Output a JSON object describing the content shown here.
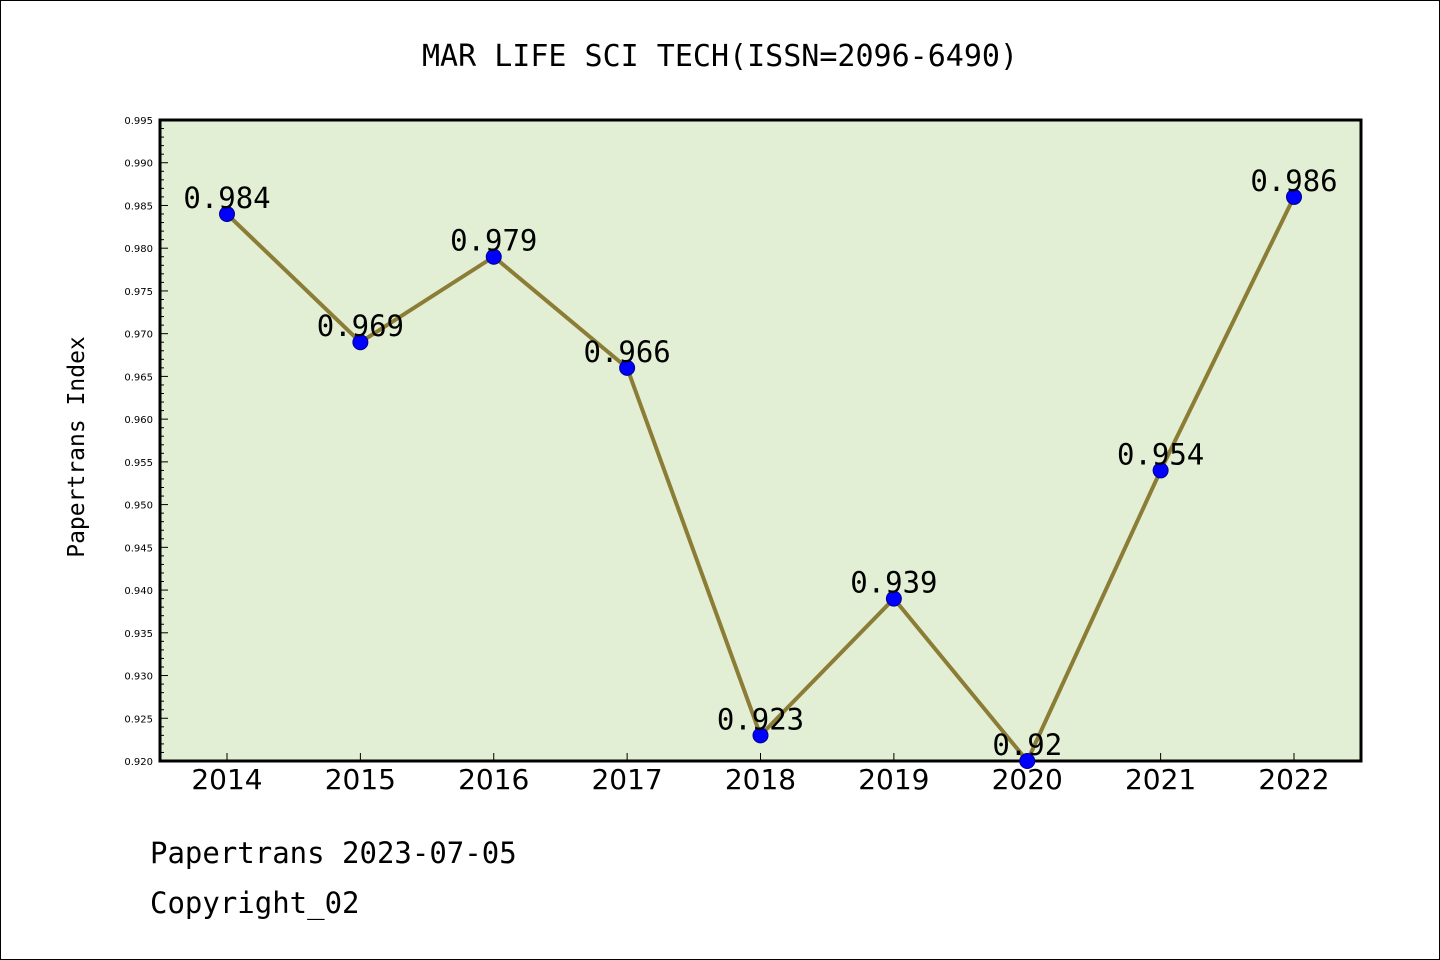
{
  "chart_data": {
    "type": "line",
    "title": "MAR LIFE SCI TECH(ISSN=2096-6490)",
    "xlabel": "",
    "ylabel": "Papertrans Index",
    "categories": [
      "2014",
      "2015",
      "2016",
      "2017",
      "2018",
      "2019",
      "2020",
      "2021",
      "2022"
    ],
    "values": [
      0.984,
      0.969,
      0.979,
      0.966,
      0.923,
      0.939,
      0.92,
      0.954,
      0.986
    ],
    "data_labels": [
      "0.984",
      "0.969",
      "0.979",
      "0.966",
      "0.923",
      "0.939",
      "0.92",
      "0.954",
      "0.986"
    ],
    "ylim": [
      0.92,
      0.995
    ],
    "yticks": [
      "0.920",
      "0.925",
      "0.930",
      "0.935",
      "0.940",
      "0.945",
      "0.950",
      "0.955",
      "0.960",
      "0.965",
      "0.970",
      "0.975",
      "0.980",
      "0.985",
      "0.990",
      "0.995"
    ],
    "grid": false,
    "colors": {
      "plot_background": "#e2efd4",
      "line": "#8b7d35",
      "marker": "#0000ff"
    }
  },
  "footer": {
    "line1": "Papertrans 2023-07-05",
    "line2": "Copyright_02"
  }
}
